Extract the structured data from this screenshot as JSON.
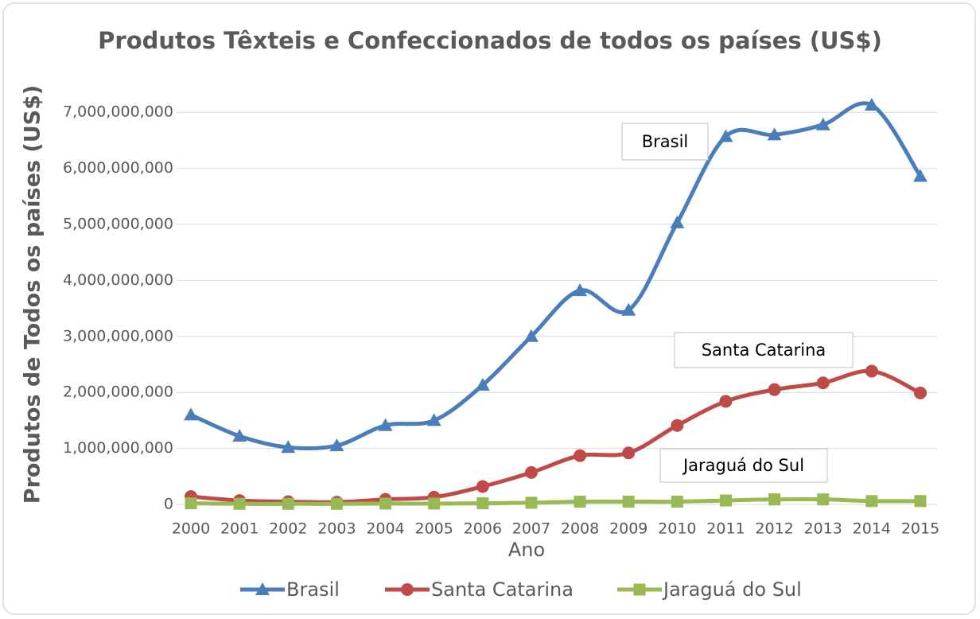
{
  "chart_data": {
    "type": "line",
    "title": "Produtos Têxteis e Confeccionados de todos os países (US$)",
    "x_label": "Ano",
    "y_label": "Produtos de Todos os países (US$)",
    "categories": [
      "2000",
      "2001",
      "2002",
      "2003",
      "2004",
      "2005",
      "2006",
      "2007",
      "2008",
      "2009",
      "2010",
      "2011",
      "2012",
      "2013",
      "2014",
      "2015"
    ],
    "series": [
      {
        "name": "Brasil",
        "color": "#4a7ebb",
        "marker": "triangle",
        "values": [
          1600000000,
          1220000000,
          1020000000,
          1050000000,
          1410000000,
          1500000000,
          2130000000,
          3000000000,
          3820000000,
          3470000000,
          5030000000,
          6570000000,
          6600000000,
          6780000000,
          7130000000,
          5860000000
        ]
      },
      {
        "name": "Santa Catarina",
        "color": "#be4b48",
        "marker": "circle",
        "values": [
          140000000,
          70000000,
          50000000,
          40000000,
          90000000,
          130000000,
          320000000,
          570000000,
          870000000,
          920000000,
          1410000000,
          1840000000,
          2050000000,
          2170000000,
          2380000000,
          1990000000
        ]
      },
      {
        "name": "Jaraguá do Sul",
        "color": "#98b954",
        "marker": "square",
        "values": [
          20000000,
          10000000,
          10000000,
          10000000,
          15000000,
          15000000,
          20000000,
          30000000,
          50000000,
          50000000,
          50000000,
          70000000,
          90000000,
          90000000,
          60000000,
          60000000
        ]
      }
    ],
    "annotations": [
      "Brasil",
      "Santa Catarina",
      "Jaraguá do Sul"
    ],
    "ylim": [
      0,
      7500000000
    ],
    "yticks": [
      0,
      {
        "value": 1000000000,
        "label": "1,000,000,000"
      },
      {
        "value": 2000000000,
        "label": "2,000,000,000"
      },
      {
        "value": 3000000000,
        "label": "3,000,000,000"
      },
      {
        "value": 4000000000,
        "label": "4,000,000,000"
      },
      {
        "value": 5000000000,
        "label": "5,000,000,000"
      },
      {
        "value": 6000000000,
        "label": "6,000,000,000"
      },
      {
        "value": 7000000000,
        "label": "7,000,000,000"
      }
    ],
    "grid": true,
    "smooth": true,
    "legend": "bottom"
  }
}
